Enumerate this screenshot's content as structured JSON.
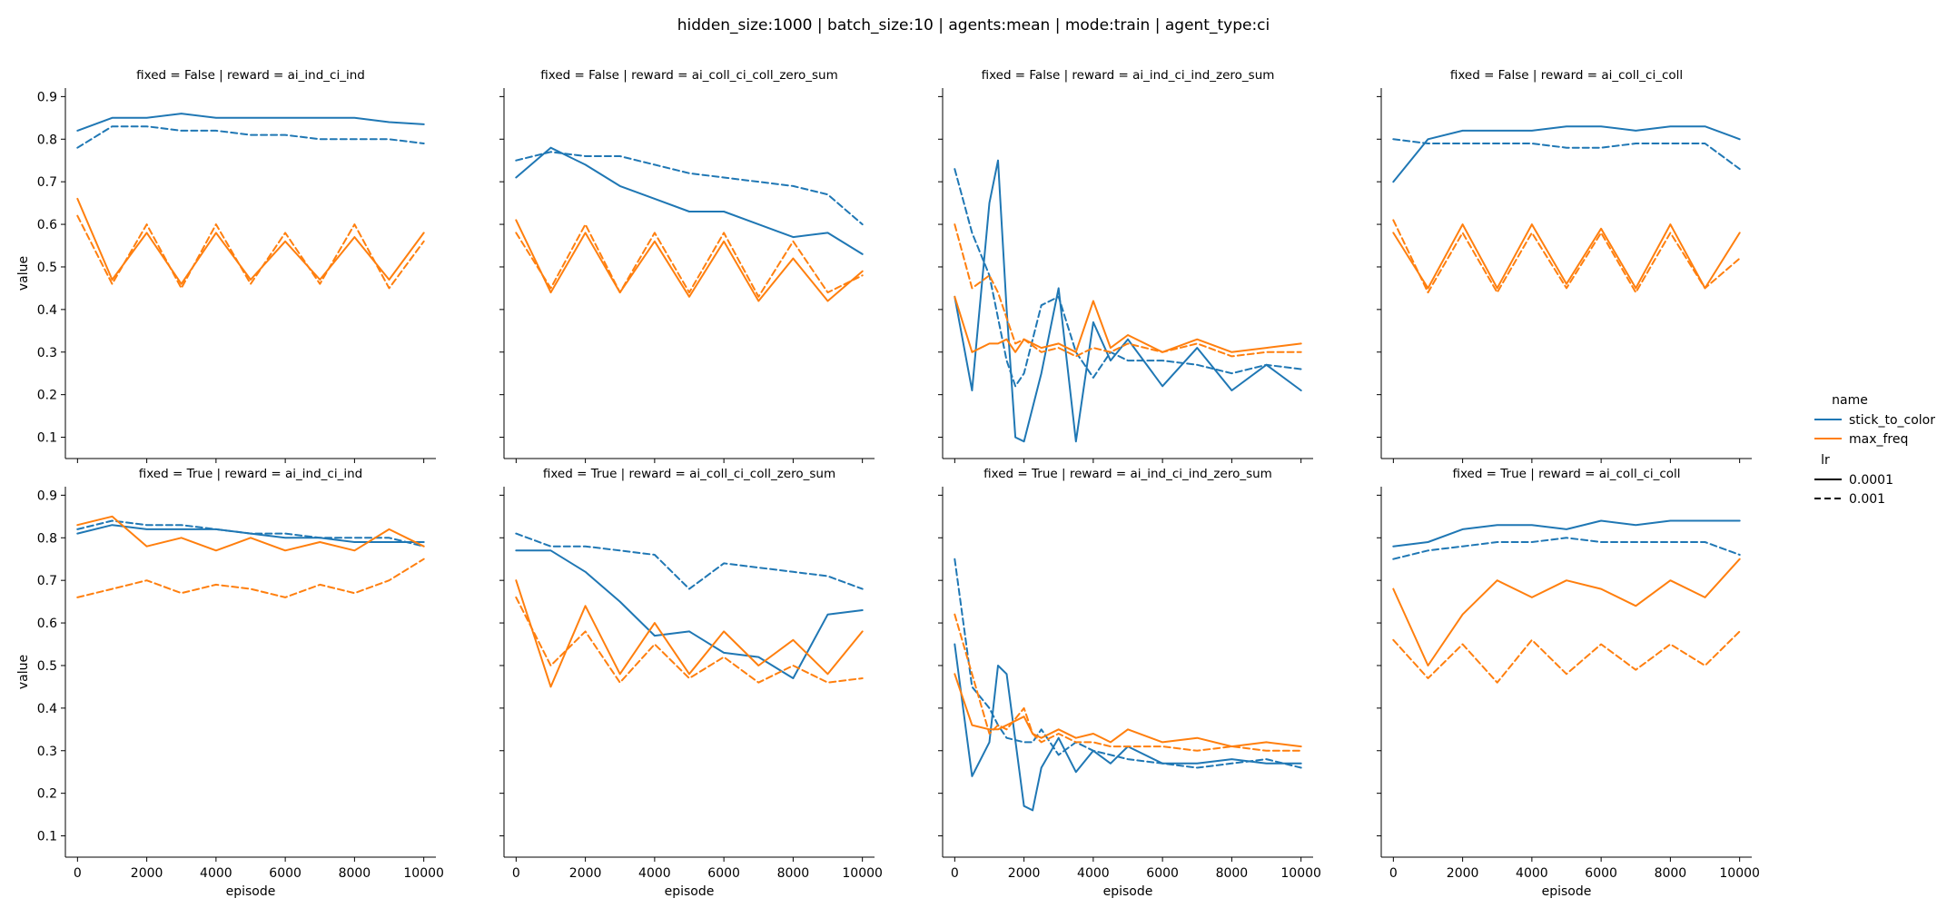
{
  "figure": {
    "suptitle": "hidden_size:1000 | batch_size:10 | agents:mean | mode:train | agent_type:ci",
    "xlabel": "episode",
    "ylabel": "value",
    "xticks": [
      0,
      2000,
      4000,
      6000,
      8000,
      10000
    ],
    "yticks": [
      "0.1",
      "0.2",
      "0.3",
      "0.4",
      "0.5",
      "0.6",
      "0.7",
      "0.8",
      "0.9"
    ]
  },
  "legend": {
    "name_title": "name",
    "entries": [
      {
        "label": "stick_to_color",
        "color": "#1f77b4"
      },
      {
        "label": "max_freq",
        "color": "#ff7f0e"
      }
    ],
    "lr_title": "lr",
    "lr_entries": [
      {
        "label": "0.0001",
        "dash": "solid"
      },
      {
        "label": "0.001",
        "dash": "dashed"
      }
    ]
  },
  "chart_data": [
    {
      "type": "line",
      "title": "fixed = False | reward = ai_ind_ci_ind",
      "xlim": [
        -350,
        10350
      ],
      "ylim": [
        0.05,
        0.92
      ],
      "x": [
        0,
        1000,
        2000,
        3000,
        4000,
        5000,
        6000,
        7000,
        8000,
        9000,
        10000
      ],
      "series": [
        {
          "name": "stick_to_color",
          "lr": "0.0001",
          "values": [
            0.82,
            0.85,
            0.85,
            0.86,
            0.85,
            0.85,
            0.85,
            0.85,
            0.85,
            0.84,
            0.835
          ]
        },
        {
          "name": "stick_to_color",
          "lr": "0.001",
          "values": [
            0.78,
            0.83,
            0.83,
            0.82,
            0.82,
            0.81,
            0.81,
            0.8,
            0.8,
            0.8,
            0.79
          ]
        },
        {
          "name": "max_freq",
          "lr": "0.0001",
          "values": [
            0.66,
            0.47,
            0.58,
            0.46,
            0.58,
            0.47,
            0.56,
            0.47,
            0.57,
            0.47,
            0.58
          ]
        },
        {
          "name": "max_freq",
          "lr": "0.001",
          "values": [
            0.62,
            0.46,
            0.6,
            0.45,
            0.6,
            0.46,
            0.58,
            0.46,
            0.6,
            0.45,
            0.56
          ]
        }
      ]
    },
    {
      "type": "line",
      "title": "fixed = False | reward = ai_coll_ci_coll_zero_sum",
      "xlim": [
        -350,
        10350
      ],
      "ylim": [
        0.05,
        0.92
      ],
      "x": [
        0,
        1000,
        2000,
        3000,
        4000,
        5000,
        6000,
        7000,
        8000,
        9000,
        10000
      ],
      "series": [
        {
          "name": "stick_to_color",
          "lr": "0.0001",
          "values": [
            0.71,
            0.78,
            0.74,
            0.69,
            0.66,
            0.63,
            0.63,
            0.6,
            0.57,
            0.58,
            0.53
          ]
        },
        {
          "name": "stick_to_color",
          "lr": "0.001",
          "values": [
            0.75,
            0.77,
            0.76,
            0.76,
            0.74,
            0.72,
            0.71,
            0.7,
            0.69,
            0.67,
            0.6
          ]
        },
        {
          "name": "max_freq",
          "lr": "0.0001",
          "values": [
            0.61,
            0.44,
            0.58,
            0.44,
            0.56,
            0.43,
            0.56,
            0.42,
            0.52,
            0.42,
            0.49
          ]
        },
        {
          "name": "max_freq",
          "lr": "0.001",
          "values": [
            0.58,
            0.45,
            0.6,
            0.44,
            0.58,
            0.44,
            0.58,
            0.43,
            0.56,
            0.44,
            0.48
          ]
        }
      ]
    },
    {
      "type": "line",
      "title": "fixed = False | reward = ai_ind_ci_ind_zero_sum",
      "xlim": [
        -350,
        10350
      ],
      "ylim": [
        0.05,
        0.92
      ],
      "x": [
        0,
        500,
        1000,
        1250,
        1500,
        1750,
        2000,
        2500,
        3000,
        3500,
        4000,
        4500,
        5000,
        6000,
        7000,
        8000,
        9000,
        10000
      ],
      "series": [
        {
          "name": "stick_to_color",
          "lr": "0.0001",
          "values": [
            0.43,
            0.21,
            0.65,
            0.75,
            0.4,
            0.1,
            0.09,
            0.25,
            0.45,
            0.09,
            0.37,
            0.28,
            0.33,
            0.22,
            0.31,
            0.21,
            0.27,
            0.21
          ]
        },
        {
          "name": "stick_to_color",
          "lr": "0.001",
          "values": [
            0.73,
            0.58,
            0.48,
            0.38,
            0.28,
            0.22,
            0.25,
            0.41,
            0.43,
            0.3,
            0.24,
            0.3,
            0.28,
            0.28,
            0.27,
            0.25,
            0.27,
            0.26
          ]
        },
        {
          "name": "max_freq",
          "lr": "0.0001",
          "values": [
            0.43,
            0.3,
            0.32,
            0.32,
            0.33,
            0.3,
            0.33,
            0.31,
            0.32,
            0.3,
            0.42,
            0.31,
            0.34,
            0.3,
            0.33,
            0.3,
            0.31,
            0.32
          ]
        },
        {
          "name": "max_freq",
          "lr": "0.001",
          "values": [
            0.6,
            0.45,
            0.48,
            0.44,
            0.38,
            0.32,
            0.33,
            0.3,
            0.31,
            0.29,
            0.31,
            0.3,
            0.32,
            0.3,
            0.32,
            0.29,
            0.3,
            0.3
          ]
        }
      ]
    },
    {
      "type": "line",
      "title": "fixed = False | reward = ai_coll_ci_coll",
      "xlim": [
        -350,
        10350
      ],
      "ylim": [
        0.05,
        0.92
      ],
      "x": [
        0,
        1000,
        2000,
        3000,
        4000,
        5000,
        6000,
        7000,
        8000,
        9000,
        10000
      ],
      "series": [
        {
          "name": "stick_to_color",
          "lr": "0.0001",
          "values": [
            0.7,
            0.8,
            0.82,
            0.82,
            0.82,
            0.83,
            0.83,
            0.82,
            0.83,
            0.83,
            0.8
          ]
        },
        {
          "name": "stick_to_color",
          "lr": "0.001",
          "values": [
            0.8,
            0.79,
            0.79,
            0.79,
            0.79,
            0.78,
            0.78,
            0.79,
            0.79,
            0.79,
            0.73
          ]
        },
        {
          "name": "max_freq",
          "lr": "0.0001",
          "values": [
            0.58,
            0.45,
            0.6,
            0.45,
            0.6,
            0.46,
            0.59,
            0.45,
            0.6,
            0.45,
            0.58
          ]
        },
        {
          "name": "max_freq",
          "lr": "0.001",
          "values": [
            0.61,
            0.44,
            0.58,
            0.44,
            0.58,
            0.45,
            0.58,
            0.44,
            0.58,
            0.45,
            0.52
          ]
        }
      ]
    },
    {
      "type": "line",
      "title": "fixed = True | reward = ai_ind_ci_ind",
      "xlim": [
        -350,
        10350
      ],
      "ylim": [
        0.05,
        0.92
      ],
      "x": [
        0,
        1000,
        2000,
        3000,
        4000,
        5000,
        6000,
        7000,
        8000,
        9000,
        10000
      ],
      "series": [
        {
          "name": "stick_to_color",
          "lr": "0.0001",
          "values": [
            0.81,
            0.83,
            0.82,
            0.82,
            0.82,
            0.81,
            0.8,
            0.8,
            0.79,
            0.79,
            0.79
          ]
        },
        {
          "name": "stick_to_color",
          "lr": "0.001",
          "values": [
            0.82,
            0.84,
            0.83,
            0.83,
            0.82,
            0.81,
            0.81,
            0.8,
            0.8,
            0.8,
            0.78
          ]
        },
        {
          "name": "max_freq",
          "lr": "0.0001",
          "values": [
            0.83,
            0.85,
            0.78,
            0.8,
            0.77,
            0.8,
            0.77,
            0.79,
            0.77,
            0.82,
            0.78
          ]
        },
        {
          "name": "max_freq",
          "lr": "0.001",
          "values": [
            0.66,
            0.68,
            0.7,
            0.67,
            0.69,
            0.68,
            0.66,
            0.69,
            0.67,
            0.7,
            0.75
          ]
        }
      ]
    },
    {
      "type": "line",
      "title": "fixed = True | reward = ai_coll_ci_coll_zero_sum",
      "xlim": [
        -350,
        10350
      ],
      "ylim": [
        0.05,
        0.92
      ],
      "x": [
        0,
        1000,
        2000,
        3000,
        4000,
        5000,
        6000,
        7000,
        8000,
        9000,
        10000
      ],
      "series": [
        {
          "name": "stick_to_color",
          "lr": "0.0001",
          "values": [
            0.77,
            0.77,
            0.72,
            0.65,
            0.57,
            0.58,
            0.53,
            0.52,
            0.47,
            0.62,
            0.63
          ]
        },
        {
          "name": "stick_to_color",
          "lr": "0.001",
          "values": [
            0.81,
            0.78,
            0.78,
            0.77,
            0.76,
            0.68,
            0.74,
            0.73,
            0.72,
            0.71,
            0.68
          ]
        },
        {
          "name": "max_freq",
          "lr": "0.0001",
          "values": [
            0.7,
            0.45,
            0.64,
            0.48,
            0.6,
            0.48,
            0.58,
            0.5,
            0.56,
            0.48,
            0.58
          ]
        },
        {
          "name": "max_freq",
          "lr": "0.001",
          "values": [
            0.66,
            0.5,
            0.58,
            0.46,
            0.55,
            0.47,
            0.52,
            0.46,
            0.5,
            0.46,
            0.47
          ]
        }
      ]
    },
    {
      "type": "line",
      "title": "fixed = True | reward = ai_ind_ci_ind_zero_sum",
      "xlim": [
        -350,
        10350
      ],
      "ylim": [
        0.05,
        0.92
      ],
      "x": [
        0,
        500,
        1000,
        1250,
        1500,
        2000,
        2250,
        2500,
        3000,
        3500,
        4000,
        4500,
        5000,
        6000,
        7000,
        8000,
        9000,
        10000
      ],
      "series": [
        {
          "name": "stick_to_color",
          "lr": "0.0001",
          "values": [
            0.55,
            0.24,
            0.32,
            0.5,
            0.48,
            0.17,
            0.16,
            0.26,
            0.33,
            0.25,
            0.3,
            0.27,
            0.31,
            0.27,
            0.27,
            0.28,
            0.27,
            0.27
          ]
        },
        {
          "name": "stick_to_color",
          "lr": "0.001",
          "values": [
            0.75,
            0.45,
            0.4,
            0.36,
            0.33,
            0.32,
            0.32,
            0.35,
            0.29,
            0.32,
            0.3,
            0.29,
            0.28,
            0.27,
            0.26,
            0.27,
            0.28,
            0.26
          ]
        },
        {
          "name": "max_freq",
          "lr": "0.0001",
          "values": [
            0.48,
            0.36,
            0.35,
            0.35,
            0.36,
            0.38,
            0.34,
            0.33,
            0.35,
            0.33,
            0.34,
            0.32,
            0.35,
            0.32,
            0.33,
            0.31,
            0.32,
            0.31
          ]
        },
        {
          "name": "max_freq",
          "lr": "0.001",
          "values": [
            0.62,
            0.48,
            0.34,
            0.36,
            0.35,
            0.4,
            0.34,
            0.32,
            0.34,
            0.32,
            0.32,
            0.31,
            0.31,
            0.31,
            0.3,
            0.31,
            0.3,
            0.3
          ]
        }
      ]
    },
    {
      "type": "line",
      "title": "fixed = True | reward = ai_coll_ci_coll",
      "xlim": [
        -350,
        10350
      ],
      "ylim": [
        0.05,
        0.92
      ],
      "x": [
        0,
        1000,
        2000,
        3000,
        4000,
        5000,
        6000,
        7000,
        8000,
        9000,
        10000
      ],
      "series": [
        {
          "name": "stick_to_color",
          "lr": "0.0001",
          "values": [
            0.78,
            0.79,
            0.82,
            0.83,
            0.83,
            0.82,
            0.84,
            0.83,
            0.84,
            0.84,
            0.84
          ]
        },
        {
          "name": "stick_to_color",
          "lr": "0.001",
          "values": [
            0.75,
            0.77,
            0.78,
            0.79,
            0.79,
            0.8,
            0.79,
            0.79,
            0.79,
            0.79,
            0.76
          ]
        },
        {
          "name": "max_freq",
          "lr": "0.0001",
          "values": [
            0.68,
            0.5,
            0.62,
            0.7,
            0.66,
            0.7,
            0.68,
            0.64,
            0.7,
            0.66,
            0.75
          ]
        },
        {
          "name": "max_freq",
          "lr": "0.001",
          "values": [
            0.56,
            0.47,
            0.55,
            0.46,
            0.56,
            0.48,
            0.55,
            0.49,
            0.55,
            0.5,
            0.58
          ]
        }
      ]
    }
  ]
}
